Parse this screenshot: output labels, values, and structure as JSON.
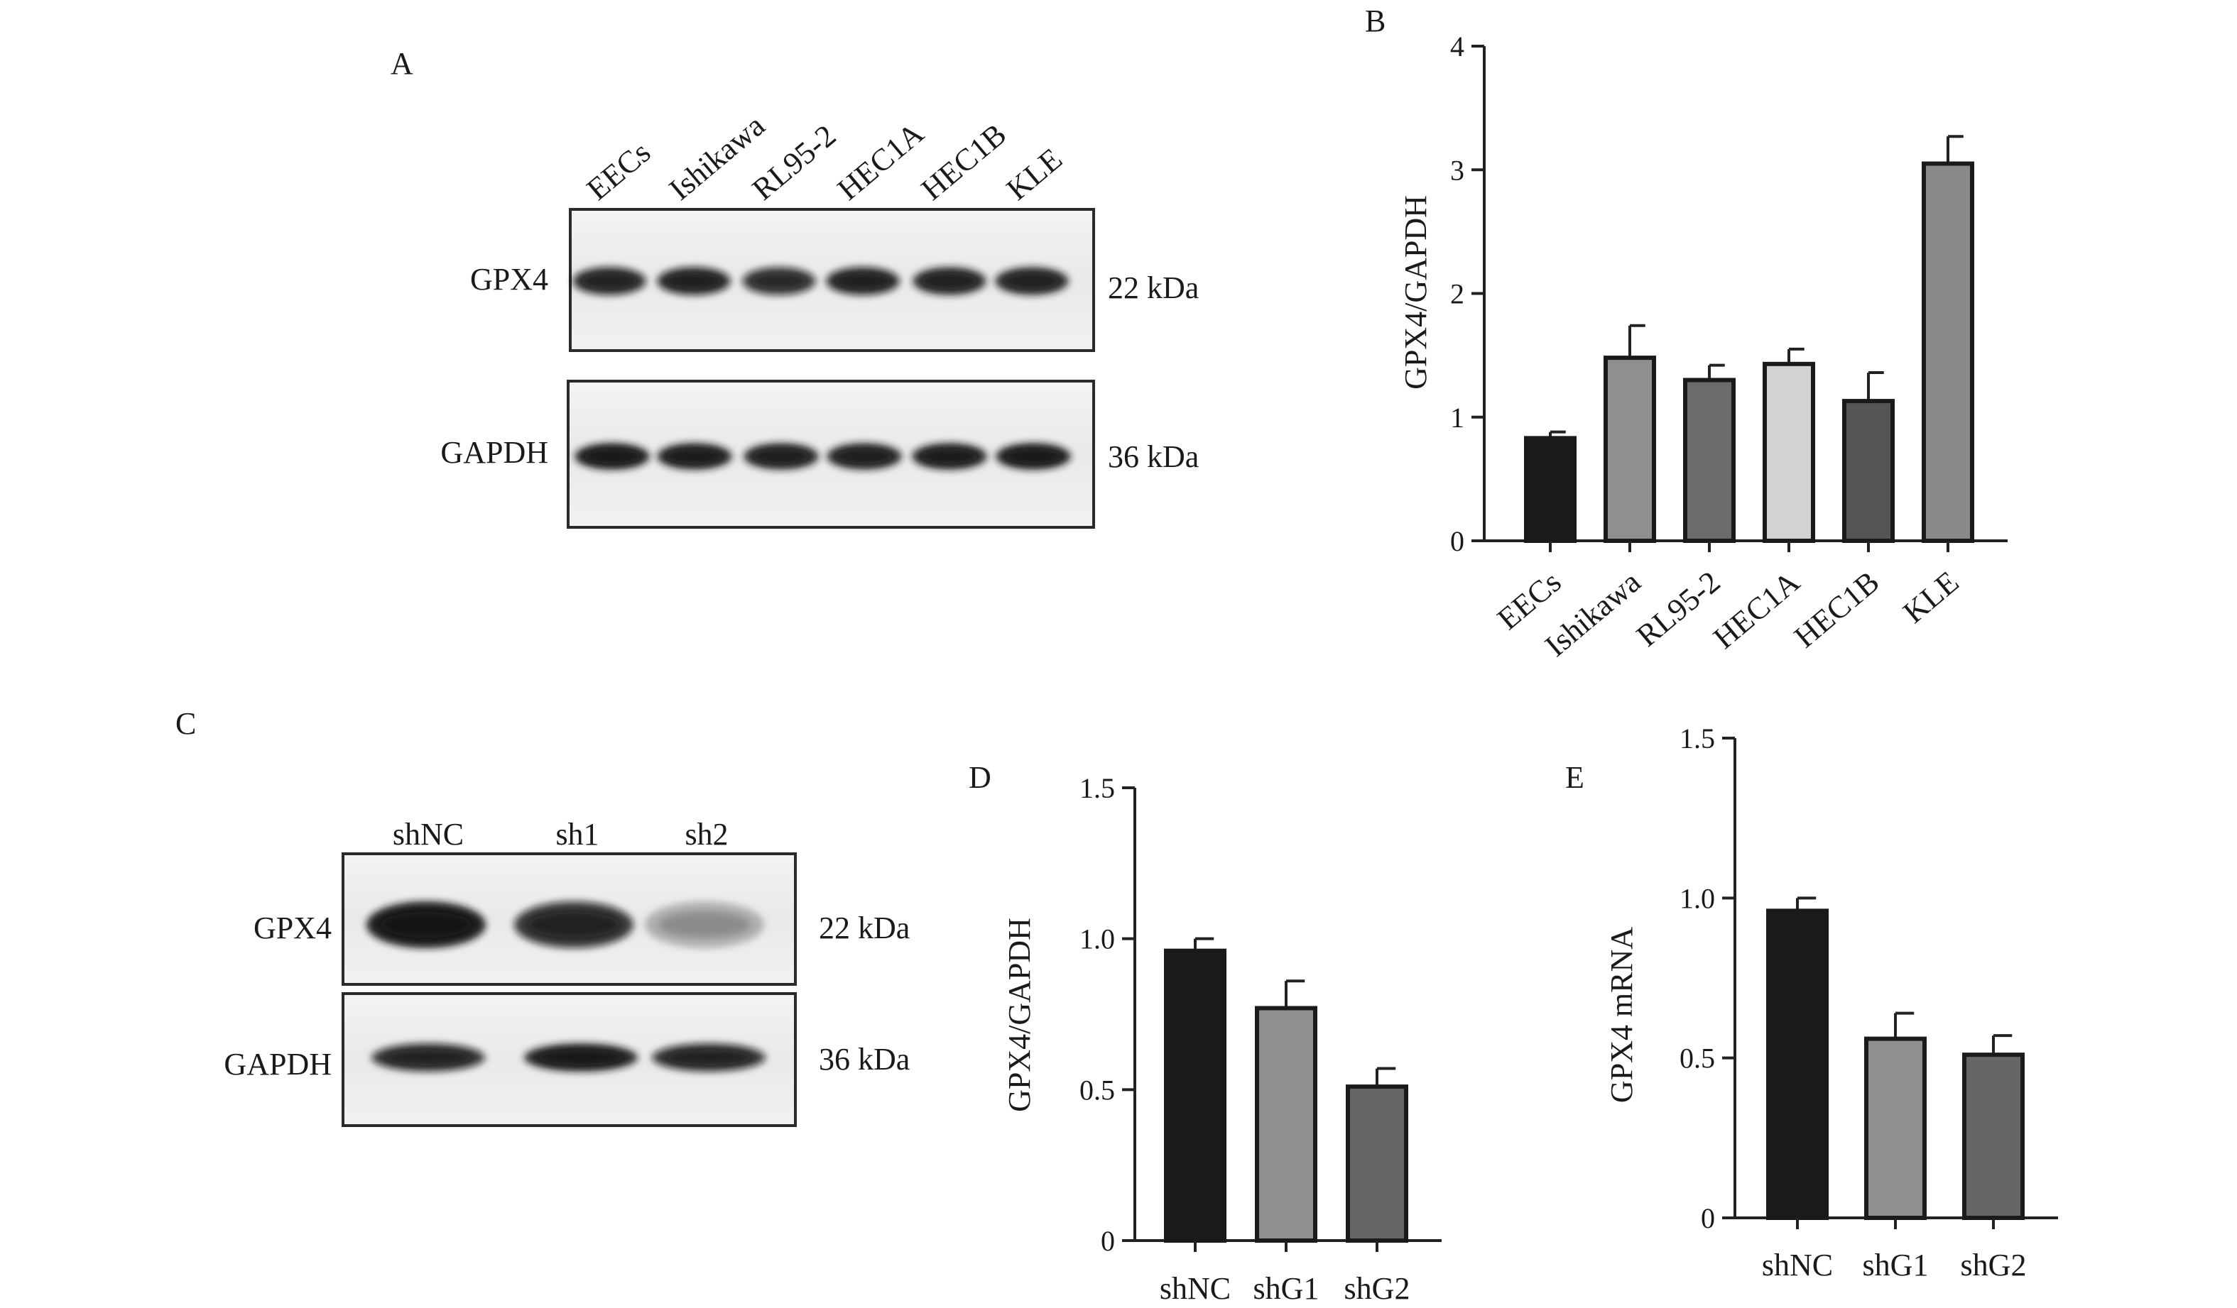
{
  "panels": {
    "A": {
      "letter": "A",
      "lanes": [
        "EECs",
        "Ishikawa",
        "RL95-2",
        "HEC1A",
        "HEC1B",
        "KLE"
      ],
      "blots": [
        {
          "protein": "GPX4",
          "size": "22 kDa",
          "intensity": [
            0.8,
            0.82,
            0.75,
            0.82,
            0.84,
            0.84
          ]
        },
        {
          "protein": "GAPDH",
          "size": "36 kDa",
          "intensity": [
            0.9,
            0.88,
            0.86,
            0.86,
            0.88,
            0.9
          ]
        }
      ]
    },
    "C": {
      "letter": "C",
      "lanes": [
        "shNC",
        "sh1",
        "sh2"
      ],
      "blots": [
        {
          "protein": "GPX4",
          "size": "22 kDa",
          "intensity": [
            0.95,
            0.8,
            0.25
          ]
        },
        {
          "protein": "GAPDH",
          "size": "36 kDa",
          "intensity": [
            0.8,
            0.9,
            0.8
          ]
        }
      ]
    }
  },
  "chart_data": [
    {
      "id": "B",
      "letter": "B",
      "type": "bar",
      "categories": [
        "EECs",
        "Ishikawa",
        "RL95-2",
        "HEC1A",
        "HEC1B",
        "KLE"
      ],
      "values": [
        0.83,
        1.48,
        1.3,
        1.43,
        1.13,
        3.05
      ],
      "errors": [
        0.05,
        0.26,
        0.12,
        0.12,
        0.23,
        0.22
      ],
      "bar_colors": [
        "#1b1b1b",
        "#8f8f8f",
        "#6b6b6b",
        "#d2d2d2",
        "#555555",
        "#8a8a8a"
      ],
      "ylabel": "GPX4/GAPDH",
      "ylim": [
        0,
        4
      ],
      "yticks": [
        "0",
        "1",
        "2",
        "3",
        "4"
      ],
      "ytick_values": [
        0,
        1,
        2,
        3,
        4
      ]
    },
    {
      "id": "D",
      "letter": "D",
      "type": "bar",
      "categories": [
        "shNC",
        "shG1",
        "shG2"
      ],
      "values": [
        0.96,
        0.77,
        0.51
      ],
      "errors": [
        0.04,
        0.09,
        0.06
      ],
      "bar_colors": [
        "#1b1b1b",
        "#8f8f8f",
        "#666666"
      ],
      "ylabel": "GPX4/GAPDH",
      "ylim": [
        0,
        1.5
      ],
      "yticks": [
        "0",
        "0.5",
        "1.0",
        "1.5"
      ],
      "ytick_values": [
        0,
        0.5,
        1.0,
        1.5
      ]
    },
    {
      "id": "E",
      "letter": "E",
      "type": "bar",
      "categories": [
        "shNC",
        "shG1",
        "shG2"
      ],
      "values": [
        0.96,
        0.56,
        0.51
      ],
      "errors": [
        0.04,
        0.08,
        0.06
      ],
      "bar_colors": [
        "#1b1b1b",
        "#8f8f8f",
        "#666666"
      ],
      "ylabel": "GPX4 mRNA",
      "ylim": [
        0,
        1.5
      ],
      "yticks": [
        "0",
        "0.5",
        "1.0",
        "1.5"
      ],
      "ytick_values": [
        0,
        0.5,
        1.0,
        1.5
      ]
    }
  ]
}
